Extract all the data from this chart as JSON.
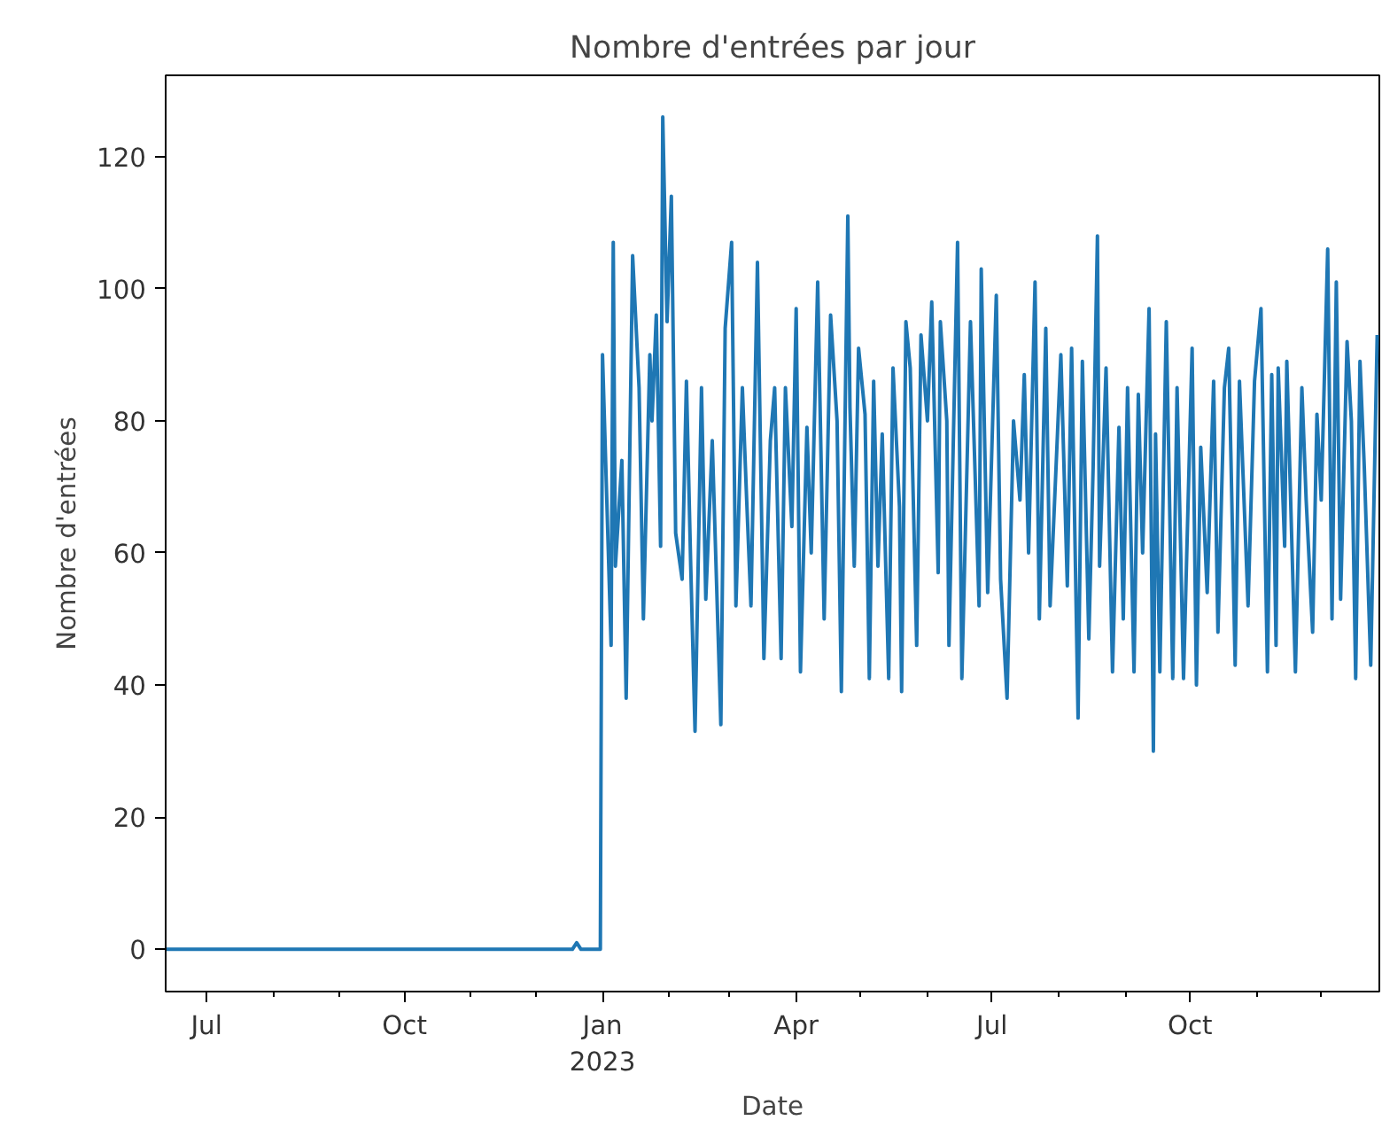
{
  "chart_data": {
    "type": "line",
    "title": "Nombre d'entrées par jour",
    "xlabel": "Date",
    "ylabel": "Nombre d'entrées",
    "x": [
      "2022-06-12",
      "2022-12-18",
      "2022-12-20",
      "2022-12-22",
      "2022-12-31",
      "2023-01-01",
      "2023-01-05",
      "2023-01-06",
      "2023-01-07",
      "2023-01-10",
      "2023-01-12",
      "2023-01-15",
      "2023-01-18",
      "2023-01-20",
      "2023-01-23",
      "2023-01-24",
      "2023-01-26",
      "2023-01-28",
      "2023-01-29",
      "2023-01-31",
      "2023-02-02",
      "2023-02-04",
      "2023-02-07",
      "2023-02-09",
      "2023-02-11",
      "2023-02-13",
      "2023-02-16",
      "2023-02-18",
      "2023-02-21",
      "2023-02-25",
      "2023-02-27",
      "2023-03-02",
      "2023-03-04",
      "2023-03-07",
      "2023-03-09",
      "2023-03-11",
      "2023-03-14",
      "2023-03-17",
      "2023-03-20",
      "2023-03-22",
      "2023-03-25",
      "2023-03-27",
      "2023-03-30",
      "2023-04-01",
      "2023-04-03",
      "2023-04-06",
      "2023-04-08",
      "2023-04-11",
      "2023-04-14",
      "2023-04-17",
      "2023-04-20",
      "2023-04-22",
      "2023-04-25",
      "2023-04-26",
      "2023-04-28",
      "2023-04-30",
      "2023-05-03",
      "2023-05-05",
      "2023-05-07",
      "2023-05-09",
      "2023-05-11",
      "2023-05-14",
      "2023-05-16",
      "2023-05-19",
      "2023-05-20",
      "2023-05-22",
      "2023-05-24",
      "2023-05-27",
      "2023-05-29",
      "2023-06-01",
      "2023-06-03",
      "2023-06-06",
      "2023-06-07",
      "2023-06-10",
      "2023-06-11",
      "2023-06-15",
      "2023-06-17",
      "2023-06-21",
      "2023-06-25",
      "2023-06-26",
      "2023-06-29",
      "2023-07-03",
      "2023-07-05",
      "2023-07-08",
      "2023-07-11",
      "2023-07-14",
      "2023-07-16",
      "2023-07-18",
      "2023-07-21",
      "2023-07-23",
      "2023-07-26",
      "2023-07-28",
      "2023-08-02",
      "2023-08-05",
      "2023-08-07",
      "2023-08-10",
      "2023-08-12",
      "2023-08-15",
      "2023-08-17",
      "2023-08-19",
      "2023-08-20",
      "2023-08-23",
      "2023-08-26",
      "2023-08-29",
      "2023-08-31",
      "2023-09-02",
      "2023-09-05",
      "2023-09-07",
      "2023-09-09",
      "2023-09-12",
      "2023-09-14",
      "2023-09-15",
      "2023-09-17",
      "2023-09-20",
      "2023-09-23",
      "2023-09-25",
      "2023-09-28",
      "2023-10-02",
      "2023-10-04",
      "2023-10-06",
      "2023-10-09",
      "2023-10-12",
      "2023-10-14",
      "2023-10-17",
      "2023-10-19",
      "2023-10-22",
      "2023-10-24",
      "2023-10-28",
      "2023-10-31",
      "2023-11-03",
      "2023-11-06",
      "2023-11-08",
      "2023-11-10",
      "2023-11-11",
      "2023-11-14",
      "2023-11-15",
      "2023-11-19",
      "2023-11-22",
      "2023-11-24",
      "2023-11-27",
      "2023-11-29",
      "2023-12-01",
      "2023-12-04",
      "2023-12-06",
      "2023-12-08",
      "2023-12-10",
      "2023-12-13",
      "2023-12-15",
      "2023-12-17",
      "2023-12-19",
      "2023-12-21",
      "2023-12-24",
      "2023-12-27"
    ],
    "series": [
      {
        "color": "#1f77b4",
        "values": [
          0,
          0,
          1,
          0,
          0,
          90,
          46,
          107,
          58,
          74,
          38,
          105,
          85,
          50,
          90,
          80,
          96,
          61,
          126,
          95,
          114,
          63,
          56,
          86,
          58,
          33,
          85,
          53,
          77,
          34,
          94,
          107,
          52,
          85,
          68,
          52,
          104,
          44,
          77,
          85,
          44,
          85,
          64,
          97,
          42,
          79,
          60,
          101,
          50,
          96,
          80,
          39,
          111,
          82,
          58,
          91,
          81,
          41,
          86,
          58,
          78,
          41,
          88,
          67,
          39,
          95,
          88,
          46,
          93,
          80,
          98,
          57,
          95,
          80,
          46,
          107,
          41,
          95,
          52,
          103,
          54,
          99,
          56,
          38,
          80,
          68,
          87,
          60,
          101,
          50,
          94,
          52,
          90,
          55,
          91,
          35,
          89,
          47,
          73,
          108,
          58,
          88,
          42,
          79,
          50,
          85,
          42,
          84,
          60,
          97,
          30,
          78,
          42,
          95,
          41,
          85,
          41,
          91,
          40,
          76,
          54,
          86,
          48,
          85,
          91,
          43,
          86,
          52,
          86,
          97,
          42,
          87,
          46,
          88,
          61,
          89,
          42,
          85,
          68,
          48,
          81,
          68,
          106,
          50,
          101,
          53,
          92,
          80,
          41,
          89,
          73,
          43,
          93
        ]
      }
    ],
    "xlim": [
      "2022-06-12",
      "2023-12-28"
    ],
    "xticks": [
      {
        "value": "2022-07-01",
        "label": "Jul"
      },
      {
        "value": "2022-08-01",
        "label": null
      },
      {
        "value": "2022-09-01",
        "label": null
      },
      {
        "value": "2022-10-01",
        "label": "Oct"
      },
      {
        "value": "2022-11-01",
        "label": null
      },
      {
        "value": "2022-12-01",
        "label": null
      },
      {
        "value": "2023-01-01",
        "label": "Jan\n2023"
      },
      {
        "value": "2023-02-01",
        "label": null
      },
      {
        "value": "2023-03-01",
        "label": null
      },
      {
        "value": "2023-04-01",
        "label": "Apr"
      },
      {
        "value": "2023-05-01",
        "label": null
      },
      {
        "value": "2023-06-01",
        "label": null
      },
      {
        "value": "2023-07-01",
        "label": "Jul"
      },
      {
        "value": "2023-08-01",
        "label": null
      },
      {
        "value": "2023-09-01",
        "label": null
      },
      {
        "value": "2023-10-01",
        "label": "Oct"
      },
      {
        "value": "2023-11-01",
        "label": null
      },
      {
        "value": "2023-12-01",
        "label": null
      }
    ],
    "ylim": [
      -6.4,
      132.3
    ],
    "yticks": [
      0,
      20,
      40,
      60,
      80,
      100,
      120
    ],
    "grid": false
  }
}
